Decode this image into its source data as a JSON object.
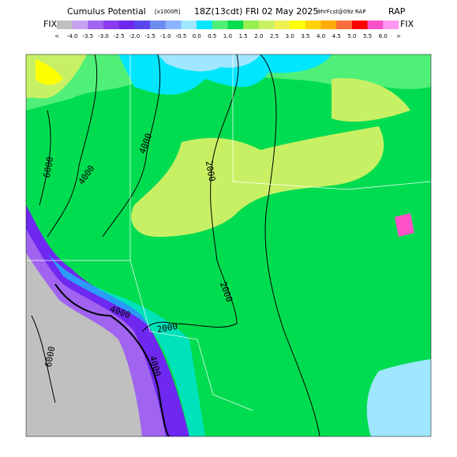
{
  "header": {
    "title": "Cumulus Potential",
    "units": "[x1000ft]",
    "time": "18Z(13cdt) FRI 02 May 2025",
    "forecast": "9hrFcst@09z RAP",
    "fix_left": "FIX",
    "fix_right": "FIX"
  },
  "colorbar": {
    "labels": [
      "<",
      "-4.0",
      "-3.5",
      "-3.0",
      "-2.5",
      "-2.0",
      "-1.5",
      "-1.0",
      "-0.5",
      "0.0",
      "0.5",
      "1.0",
      "1.5",
      "2.0",
      "2.5",
      "3.0",
      "3.5",
      "4.0",
      "4.5",
      "5.0",
      "5.5",
      "6.0",
      ">"
    ],
    "colors": [
      "#c0c0c0",
      "#c8a0f0",
      "#a064f0",
      "#8c3cf0",
      "#6e28f0",
      "#5a46f0",
      "#6e8cf0",
      "#8cb4ff",
      "#a0e6ff",
      "#00e6ff",
      "#50f078",
      "#00dc50",
      "#96f050",
      "#c8f064",
      "#f0f050",
      "#ffff00",
      "#ffd200",
      "#ffaa00",
      "#ff6e3c",
      "#ff0000",
      "#ff50c8",
      "#ff96f0"
    ]
  },
  "map": {
    "contour_labels": [
      "6000",
      "4000",
      "4000",
      "2000",
      "2000",
      "2000",
      "4000",
      "6000",
      "4000"
    ]
  }
}
